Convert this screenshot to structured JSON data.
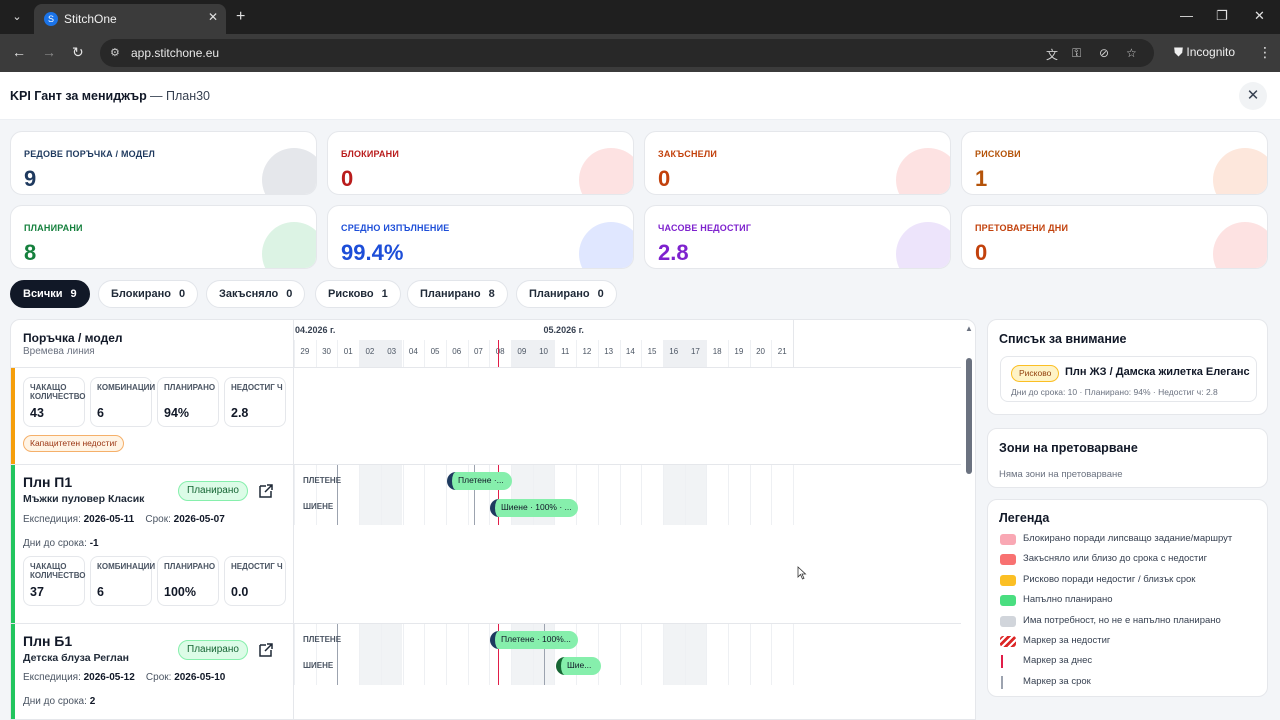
{
  "browser": {
    "tab_title": "StitchOne",
    "url": "app.stitchone.eu",
    "incognito_label": "Incognito"
  },
  "header": {
    "title": "KPI Гант за мениджър",
    "subtitle": "— План30"
  },
  "kpis": [
    {
      "label": "РЕДОВЕ ПОРЪЧКА / МОДЕЛ",
      "value": "9",
      "color": "#1f3a5f",
      "blob": "#e5e7eb"
    },
    {
      "label": "БЛОКИРАНИ",
      "value": "0",
      "color": "#b91c1c",
      "blob": "#fde2e2"
    },
    {
      "label": "ЗАКЪСНЕЛИ",
      "value": "0",
      "color": "#c2410c",
      "blob": "#fde2e2"
    },
    {
      "label": "РИСКОВИ",
      "value": "1",
      "color": "#b45309",
      "blob": "#fde7dc"
    },
    {
      "label": "ПЛАНИРАНИ",
      "value": "8",
      "color": "#15803d",
      "blob": "#dcf3e4"
    },
    {
      "label": "СРЕДНО ИЗПЪЛНЕНИЕ",
      "value": "99.4%",
      "color": "#1d4ed8",
      "blob": "#e0e7ff"
    },
    {
      "label": "ЧАСОВЕ НЕДОСТИГ",
      "value": "2.8",
      "color": "#7e22ce",
      "blob": "#ede4fb"
    },
    {
      "label": "ПРЕТОВАРЕНИ ДНИ",
      "value": "0",
      "color": "#c2410c",
      "blob": "#fde2e2"
    }
  ],
  "filters": [
    {
      "label": "Всички",
      "count": "9",
      "active": true
    },
    {
      "label": "Блокирано",
      "count": "0"
    },
    {
      "label": "Закъсняло",
      "count": "0"
    },
    {
      "label": "Рисково",
      "count": "1"
    },
    {
      "label": "Планирано",
      "count": "8"
    },
    {
      "label": "Планирано",
      "count": "0"
    }
  ],
  "gantt": {
    "col_title": "Поръчка / модел",
    "col_subtitle": "Времева линия",
    "months": [
      "04.2026 г.",
      "05.2026 г."
    ],
    "days": [
      "29",
      "30",
      "01",
      "02",
      "03",
      "04",
      "05",
      "06",
      "07",
      "08",
      "09",
      "10",
      "11",
      "12",
      "13",
      "14",
      "15",
      "16",
      "17",
      "18",
      "19",
      "20",
      "21"
    ],
    "row0": {
      "stats": [
        {
          "label": "ЧАКАЩО КОЛИЧЕСТВО",
          "value": "43"
        },
        {
          "label": "КОМБИНАЦИИ",
          "value": "6"
        },
        {
          "label": "ПЛАНИРАНО",
          "value": "94%"
        },
        {
          "label": "НЕДОСТИГ Ч",
          "value": "2.8"
        }
      ],
      "badge": "Капацитетен недостиг"
    },
    "row1": {
      "code": "Плн П1",
      "model": "Мъжки пуловер Класик",
      "status": "Планирано",
      "exp_label": "Експедиция:",
      "exp_value": "2026-05-11",
      "due_label": "Срок:",
      "due_value": "2026-05-07",
      "days_label": "Дни до срока:",
      "days_value": "-1",
      "stats": [
        {
          "label": "ЧАКАЩО КОЛИЧЕСТВО",
          "value": "37"
        },
        {
          "label": "КОМБИНАЦИИ",
          "value": "6"
        },
        {
          "label": "ПЛАНИРАНО",
          "value": "100%"
        },
        {
          "label": "НЕДОСТИГ Ч",
          "value": "0.0"
        }
      ],
      "lanes": [
        "ПЛЕТЕНЕ",
        "ШИЕНЕ"
      ],
      "bars": [
        "Плетене ·...",
        "Шиене · 100% · ..."
      ]
    },
    "row2": {
      "code": "Плн Б1",
      "model": "Детска блуза Реглан",
      "status": "Планирано",
      "exp_label": "Експедиция:",
      "exp_value": "2026-05-12",
      "due_label": "Срок:",
      "due_value": "2026-05-10",
      "days_label": "Дни до срока:",
      "days_value": "2",
      "lanes": [
        "ПЛЕТЕНЕ",
        "ШИЕНЕ"
      ],
      "bars": [
        "Плетене · 100%...",
        "Шие..."
      ]
    }
  },
  "attention": {
    "title": "Списък за внимание",
    "item": {
      "badge": "Рисково",
      "name": "Плн ЖЗ / Дамска жилетка Елеганс",
      "meta": "Дни до срока: 10 · Планирано: 94% · Недостиг ч: 2.8"
    }
  },
  "overload": {
    "title": "Зони на претоварване",
    "empty": "Няма зони на претоварване"
  },
  "legend": {
    "title": "Легенда",
    "items": [
      {
        "label": "Блокирано поради липсващо задание/маршрут",
        "color": "#f9a8b4"
      },
      {
        "label": "Закъсняло или близо до срока с недостиг",
        "color": "#f87171"
      },
      {
        "label": "Рисково поради недостиг / близък срок",
        "color": "#fbbf24"
      },
      {
        "label": "Напълно планирано",
        "color": "#4ade80"
      },
      {
        "label": "Има потребност, но не е напълно планирано",
        "color": "#d1d5db"
      },
      {
        "label": "Маркер за недостиг",
        "color": "#dc2626"
      },
      {
        "label": "Маркер за днес",
        "color": "#e11d48"
      },
      {
        "label": "Маркер за срок",
        "color": "#9ca3af"
      }
    ]
  }
}
